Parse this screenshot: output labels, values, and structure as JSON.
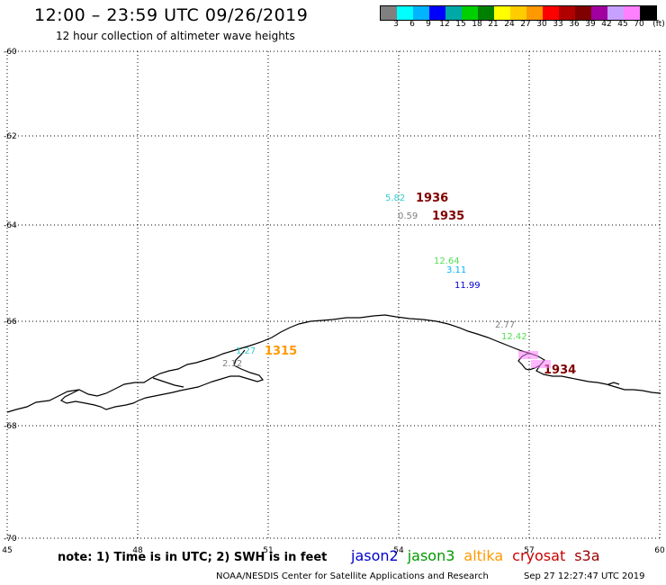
{
  "header": {
    "title": "12:00 – 23:59 UTC 09/26/2019",
    "subtitle": "12 hour collection of altimeter wave heights"
  },
  "legend": {
    "colors": [
      "#808080",
      "#00ffff",
      "#00b4ff",
      "#0000ff",
      "#00a8a8",
      "#00d000",
      "#008000",
      "#ffff00",
      "#ffcc00",
      "#ff9900",
      "#ff0000",
      "#b00000",
      "#800000",
      "#a000a0",
      "#c8a0ff",
      "#ff80ff",
      "#000000"
    ],
    "labels": [
      "3",
      "6",
      "9",
      "12",
      "15",
      "18",
      "21",
      "24",
      "27",
      "30",
      "33",
      "36",
      "39",
      "42",
      "45",
      "70",
      "(ft)"
    ]
  },
  "map": {
    "x_ticks": [
      "45",
      "48",
      "51",
      "54",
      "57",
      "60"
    ],
    "y_ticks": [
      "-60",
      "-62",
      "-64",
      "-66",
      "-68",
      "-70"
    ],
    "observations": [
      {
        "text": "5.82",
        "color": "#33cccc",
        "size": 10
      },
      {
        "text": "1936",
        "color": "#800000",
        "size": 13,
        "bold": true
      },
      {
        "text": "0.59",
        "color": "#808080",
        "size": 10
      },
      {
        "text": "1935",
        "color": "#800000",
        "size": 13,
        "bold": true
      },
      {
        "text": "12.64",
        "color": "#55dd55",
        "size": 10
      },
      {
        "text": "3.11",
        "color": "#00b4ff",
        "size": 10
      },
      {
        "text": "11.99",
        "color": "#0000cc",
        "size": 10
      },
      {
        "text": "2.77",
        "color": "#808080",
        "size": 10
      },
      {
        "text": "12.42",
        "color": "#55dd55",
        "size": 10
      },
      {
        "text": "1934",
        "color": "#800000",
        "size": 13,
        "bold": true
      },
      {
        "text": "1.27",
        "color": "#33cccc",
        "size": 10
      },
      {
        "text": "1315",
        "color": "#ff9900",
        "size": 13,
        "bold": true
      },
      {
        "text": "2.12",
        "color": "#808080",
        "size": 10
      }
    ]
  },
  "footer": {
    "note": "note: 1) Time is in UTC; 2) SWH is in feet",
    "satellites": [
      {
        "name": "jason2",
        "color": "#0000cc"
      },
      {
        "name": "jason3",
        "color": "#009900"
      },
      {
        "name": "altika",
        "color": "#ff9900"
      },
      {
        "name": "cryosat",
        "color": "#cc0000"
      },
      {
        "name": "s3a",
        "color": "#990000"
      }
    ],
    "credit": "NOAA/NESDIS Center for Satellite Applications and Research",
    "timestamp": "Sep 27 12:27:47 UTC 2019"
  }
}
